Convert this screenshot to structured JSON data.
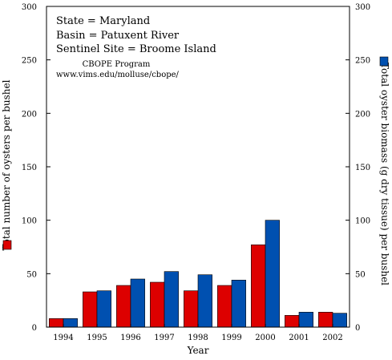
{
  "chart_data": {
    "type": "bar",
    "annotations": {
      "line1": "State = Maryland",
      "line2": "Basin = Patuxent River",
      "line3": "Sentinel Site = Broome Island",
      "program": "CBOPE Program",
      "url": "www.vims.edu/molluse/cbope/"
    },
    "xlabel": "Year",
    "ylabel_left": "Total number of oysters per bushel",
    "ylabel_right": "Total oyster biomass (g dry tissue) per bushel",
    "categories": [
      "1994",
      "1995",
      "1996",
      "1997",
      "1998",
      "1999",
      "2000",
      "2001",
      "2002"
    ],
    "series": [
      {
        "name": "Total number of oysters per bushel",
        "axis": "left",
        "color": "#dd0000",
        "values": [
          8,
          33,
          39,
          42,
          34,
          39,
          77,
          11,
          14
        ]
      },
      {
        "name": "Total oyster biomass (g dry tissue) per bushel",
        "axis": "right",
        "color": "#0050b0",
        "values": [
          8,
          34,
          45,
          52,
          49,
          44,
          100,
          14,
          13
        ]
      }
    ],
    "ylim_left": [
      0,
      300
    ],
    "ylim_right": [
      0,
      300
    ],
    "yticks": [
      0,
      50,
      100,
      150,
      200,
      250,
      300
    ],
    "grid": false,
    "legend": "swatches beside the left and right axis titles"
  }
}
